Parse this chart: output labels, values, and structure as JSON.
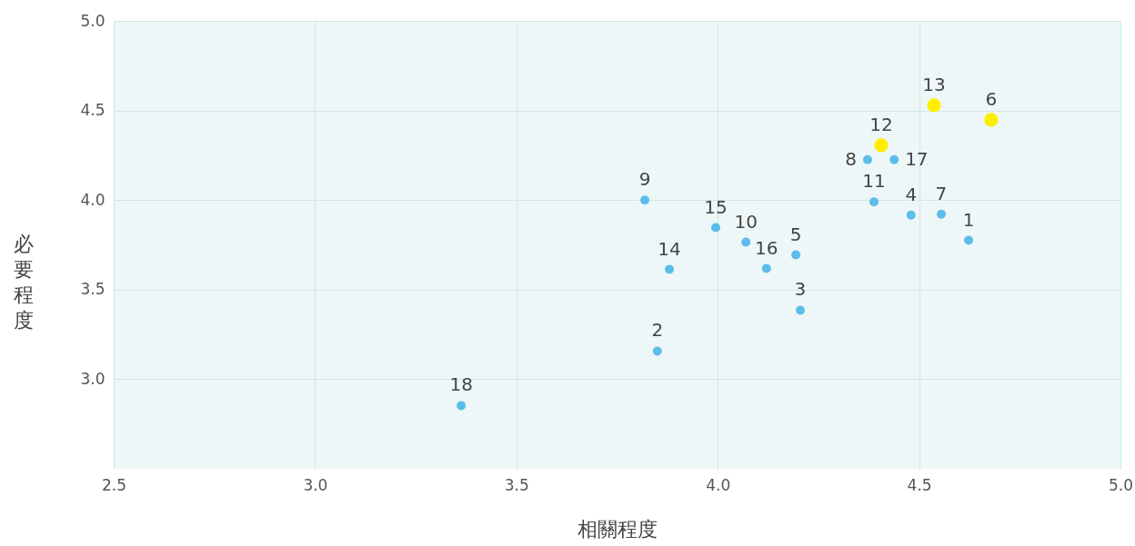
{
  "chart_data": {
    "type": "scatter",
    "xlabel": "相關程度",
    "ylabel": "必要程度",
    "xlim": [
      2.5,
      5.0
    ],
    "ylim": [
      2.5,
      5.0
    ],
    "xticks": [
      2.5,
      {
        "value": 3,
        "label": "3.0"
      },
      3.5,
      {
        "value": 4,
        "label": "4.0"
      },
      4.5,
      {
        "value": 5,
        "label": "5.0"
      }
    ],
    "yticks": [
      {
        "value": 3,
        "label": "3.0"
      },
      3.5,
      {
        "value": 4,
        "label": "4.0"
      },
      4.5,
      {
        "value": 5,
        "label": "5.0"
      }
    ],
    "grid": true,
    "marker": "circle",
    "series": [
      {
        "color": "#5bbde9",
        "x": [
          4.623,
          3.85,
          4.205,
          4.48,
          4.194,
          4.555,
          4.372,
          3.819,
          4.07,
          4.388,
          3.88,
          3.995,
          4.121,
          4.438,
          3.363
        ],
        "values": [
          3.775,
          3.157,
          3.385,
          3.916,
          3.694,
          3.921,
          4.225,
          4.0,
          3.765,
          3.99,
          3.613,
          3.846,
          3.618,
          4.225,
          2.853
        ]
      },
      {
        "color": "#ffee00",
        "x": [
          4.679,
          4.406,
          4.537
        ],
        "values": [
          4.448,
          4.306,
          4.529
        ]
      }
    ],
    "annotations": [
      {
        "text": "1",
        "x": 4.623,
        "y": 3.775
      },
      {
        "text": "2",
        "x": 3.85,
        "y": 3.157
      },
      {
        "text": "3",
        "x": 4.205,
        "y": 3.385
      },
      {
        "text": "4",
        "x": 4.48,
        "y": 3.916
      },
      {
        "text": "5",
        "x": 4.194,
        "y": 3.694
      },
      {
        "text": "6",
        "x": 4.679,
        "y": 4.448
      },
      {
        "text": "7",
        "x": 4.555,
        "y": 3.921
      },
      {
        "text": "8",
        "x": 4.372,
        "y": 4.225
      },
      {
        "text": "9",
        "x": 3.819,
        "y": 4.0
      },
      {
        "text": "10",
        "x": 4.07,
        "y": 3.765
      },
      {
        "text": "11",
        "x": 4.388,
        "y": 3.99
      },
      {
        "text": "12",
        "x": 4.406,
        "y": 4.306
      },
      {
        "text": "13",
        "x": 4.537,
        "y": 4.529
      },
      {
        "text": "14",
        "x": 3.88,
        "y": 3.613
      },
      {
        "text": "15",
        "x": 3.995,
        "y": 3.846
      },
      {
        "text": "16",
        "x": 4.121,
        "y": 3.618
      },
      {
        "text": "17",
        "x": 4.438,
        "y": 4.225
      },
      {
        "text": "18",
        "x": 3.363,
        "y": 2.853
      }
    ]
  }
}
